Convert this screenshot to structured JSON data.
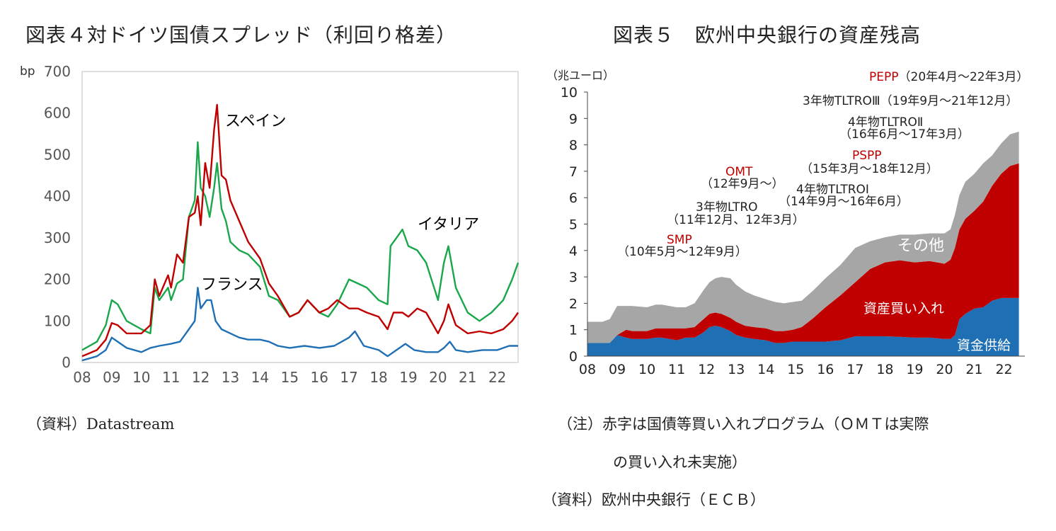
{
  "chart_data": [
    {
      "type": "line",
      "title": "図表４対ドイツ国債スプレッド（利回り格差）",
      "ylabel": "bp",
      "ylim": [
        0,
        700
      ],
      "xlim": [
        2008,
        2022.7
      ],
      "yticks": [
        0,
        100,
        200,
        300,
        400,
        500,
        600,
        700
      ],
      "xticklabels": [
        "08",
        "09",
        "10",
        "11",
        "12",
        "13",
        "14",
        "15",
        "16",
        "17",
        "18",
        "19",
        "20",
        "21",
        "22"
      ],
      "grid": false,
      "series": [
        {
          "name": "スペイン",
          "color": "#c00000",
          "x": [
            2008.0,
            2008.5,
            2008.8,
            2009.0,
            2009.2,
            2009.5,
            2010.0,
            2010.3,
            2010.45,
            2010.6,
            2010.9,
            2011.0,
            2011.2,
            2011.4,
            2011.6,
            2011.8,
            2011.9,
            2012.0,
            2012.15,
            2012.3,
            2012.45,
            2012.55,
            2012.7,
            2012.85,
            2013.0,
            2013.3,
            2013.6,
            2014.0,
            2014.3,
            2014.6,
            2015.0,
            2015.3,
            2015.6,
            2016.0,
            2016.3,
            2016.6,
            2017.0,
            2017.3,
            2017.6,
            2018.0,
            2018.3,
            2018.5,
            2018.8,
            2019.0,
            2019.3,
            2019.6,
            2020.0,
            2020.2,
            2020.35,
            2020.6,
            2021.0,
            2021.4,
            2021.8,
            2022.2,
            2022.5,
            2022.7
          ],
          "values": [
            15,
            30,
            55,
            95,
            90,
            70,
            70,
            90,
            200,
            160,
            210,
            180,
            260,
            240,
            350,
            360,
            400,
            330,
            480,
            420,
            560,
            620,
            450,
            440,
            390,
            340,
            290,
            250,
            190,
            160,
            110,
            120,
            150,
            120,
            130,
            150,
            130,
            130,
            120,
            110,
            80,
            120,
            120,
            110,
            130,
            120,
            70,
            100,
            140,
            90,
            70,
            75,
            70,
            80,
            100,
            120
          ]
        },
        {
          "name": "イタリア",
          "color": "#1aa64a",
          "x": [
            2008.0,
            2008.5,
            2008.8,
            2009.0,
            2009.2,
            2009.5,
            2010.0,
            2010.3,
            2010.45,
            2010.6,
            2010.9,
            2011.0,
            2011.2,
            2011.4,
            2011.6,
            2011.8,
            2011.9,
            2012.0,
            2012.15,
            2012.3,
            2012.45,
            2012.55,
            2012.7,
            2012.85,
            2013.0,
            2013.3,
            2013.6,
            2014.0,
            2014.3,
            2014.6,
            2015.0,
            2015.3,
            2015.6,
            2016.0,
            2016.3,
            2016.6,
            2017.0,
            2017.3,
            2017.6,
            2018.0,
            2018.3,
            2018.4,
            2018.6,
            2018.8,
            2019.0,
            2019.3,
            2019.6,
            2020.0,
            2020.2,
            2020.35,
            2020.6,
            2021.0,
            2021.4,
            2021.8,
            2022.2,
            2022.5,
            2022.7
          ],
          "values": [
            30,
            50,
            90,
            150,
            140,
            100,
            80,
            70,
            180,
            150,
            180,
            150,
            190,
            200,
            350,
            390,
            530,
            420,
            400,
            350,
            420,
            480,
            370,
            340,
            290,
            270,
            260,
            230,
            160,
            150,
            110,
            120,
            150,
            120,
            110,
            140,
            200,
            190,
            180,
            150,
            140,
            280,
            300,
            320,
            280,
            270,
            240,
            150,
            240,
            280,
            180,
            120,
            100,
            120,
            150,
            200,
            240
          ]
        },
        {
          "name": "フランス",
          "color": "#1f6fb4",
          "x": [
            2008.0,
            2008.5,
            2008.8,
            2009.0,
            2009.2,
            2009.5,
            2010.0,
            2010.3,
            2010.6,
            2011.0,
            2011.3,
            2011.6,
            2011.8,
            2011.9,
            2012.0,
            2012.2,
            2012.35,
            2012.5,
            2012.7,
            2013.0,
            2013.3,
            2013.6,
            2014.0,
            2014.3,
            2014.6,
            2015.0,
            2015.5,
            2016.0,
            2016.5,
            2017.0,
            2017.2,
            2017.5,
            2018.0,
            2018.3,
            2018.6,
            2018.9,
            2019.2,
            2019.6,
            2020.0,
            2020.2,
            2020.4,
            2020.6,
            2021.0,
            2021.5,
            2022.0,
            2022.4,
            2022.7
          ],
          "values": [
            5,
            15,
            30,
            60,
            50,
            35,
            25,
            35,
            40,
            45,
            50,
            80,
            100,
            180,
            130,
            150,
            150,
            100,
            80,
            70,
            60,
            55,
            55,
            50,
            40,
            35,
            40,
            35,
            40,
            60,
            75,
            40,
            30,
            15,
            30,
            45,
            30,
            25,
            25,
            35,
            50,
            30,
            25,
            30,
            30,
            40,
            40
          ]
        }
      ]
    },
    {
      "type": "area",
      "stacked": true,
      "title": "図表５　欧州中央銀行の資産残高",
      "ylabel": "（兆ユーロ）",
      "ylim": [
        0,
        10
      ],
      "xlim": [
        2008,
        2022.7
      ],
      "yticks": [
        0,
        1,
        2,
        3,
        4,
        5,
        6,
        7,
        8,
        9,
        10
      ],
      "xticklabels": [
        "08",
        "09",
        "10",
        "11",
        "12",
        "13",
        "14",
        "15",
        "16",
        "17",
        "18",
        "19",
        "20",
        "21",
        "22"
      ],
      "grid": false,
      "x": [
        2008.0,
        2008.5,
        2008.75,
        2009.0,
        2009.3,
        2009.5,
        2010.0,
        2010.3,
        2010.5,
        2011.0,
        2011.3,
        2011.6,
        2011.9,
        2012.1,
        2012.3,
        2012.5,
        2012.8,
        2013.0,
        2013.3,
        2013.6,
        2014.0,
        2014.3,
        2014.6,
        2014.9,
        2015.2,
        2015.6,
        2016.0,
        2016.5,
        2017.0,
        2017.5,
        2018.0,
        2018.5,
        2019.0,
        2019.5,
        2020.0,
        2020.2,
        2020.35,
        2020.5,
        2020.7,
        2021.0,
        2021.3,
        2021.6,
        2021.9,
        2022.2,
        2022.5
      ],
      "series": [
        {
          "name": "資金供給",
          "color": "#1f6fb4",
          "values": [
            0.5,
            0.5,
            0.5,
            0.8,
            0.7,
            0.65,
            0.65,
            0.7,
            0.7,
            0.6,
            0.7,
            0.7,
            0.9,
            1.1,
            1.15,
            1.1,
            0.95,
            0.8,
            0.7,
            0.65,
            0.6,
            0.5,
            0.5,
            0.55,
            0.55,
            0.55,
            0.55,
            0.6,
            0.75,
            0.75,
            0.75,
            0.73,
            0.7,
            0.7,
            0.65,
            0.65,
            0.8,
            1.4,
            1.6,
            1.8,
            1.85,
            2.1,
            2.2,
            2.2,
            2.2
          ]
        },
        {
          "name": "資産買い入れ",
          "color": "#c00000",
          "values": [
            0.0,
            0.0,
            0.0,
            0.0,
            0.3,
            0.3,
            0.3,
            0.35,
            0.35,
            0.45,
            0.35,
            0.4,
            0.5,
            0.5,
            0.5,
            0.5,
            0.5,
            0.5,
            0.45,
            0.45,
            0.45,
            0.45,
            0.45,
            0.45,
            0.55,
            0.9,
            1.3,
            1.7,
            2.05,
            2.55,
            2.8,
            2.9,
            2.85,
            2.9,
            2.85,
            3.0,
            3.3,
            3.4,
            3.6,
            3.7,
            4.0,
            4.35,
            4.7,
            5.0,
            5.1
          ]
        },
        {
          "name": "その他",
          "color": "#a6a6a6",
          "values": [
            0.8,
            0.8,
            0.9,
            1.1,
            0.9,
            0.95,
            0.9,
            0.9,
            0.9,
            0.8,
            0.8,
            0.9,
            1.1,
            1.2,
            1.3,
            1.4,
            1.5,
            1.4,
            1.3,
            1.2,
            1.1,
            1.1,
            1.05,
            1.05,
            1.0,
            1.05,
            1.1,
            1.15,
            1.3,
            1.05,
            0.95,
            0.97,
            1.05,
            1.05,
            1.15,
            1.15,
            1.25,
            1.3,
            1.4,
            1.4,
            1.45,
            1.15,
            1.15,
            1.2,
            1.2
          ]
        }
      ]
    }
  ],
  "left": {
    "title": "図表４対ドイツ国債スプレッド（利回り格差）",
    "unit": "bp",
    "y_ticks": [
      "0",
      "100",
      "200",
      "300",
      "400",
      "500",
      "600",
      "700"
    ],
    "x_ticks": [
      "08",
      "09",
      "10",
      "11",
      "12",
      "13",
      "14",
      "15",
      "16",
      "17",
      "18",
      "19",
      "20",
      "21",
      "22"
    ],
    "labels": {
      "spain": "スペイン",
      "italy": "イタリア",
      "france": "フランス"
    },
    "source": "（資料）Datastream"
  },
  "right": {
    "title": "図表５　欧州中央銀行の資産残高",
    "unit": "（兆ユーロ）",
    "y_ticks": [
      "0",
      "1",
      "2",
      "3",
      "4",
      "5",
      "6",
      "7",
      "8",
      "9",
      "10"
    ],
    "x_ticks": [
      "08",
      "09",
      "10",
      "11",
      "12",
      "13",
      "14",
      "15",
      "16",
      "17",
      "18",
      "19",
      "20",
      "21",
      "22"
    ],
    "annotations": {
      "pepp_name": "PEPP",
      "pepp_period": "（20年4月～22年3月）",
      "tltro3": "3年物TLTROⅢ（19年9月～21年12月）",
      "tltro2_name": "4年物TLTROⅡ",
      "tltro2_period": "（16年6月～17年3月）",
      "pspp_name": "PSPP",
      "pspp_period": "（15年3月～18年12月）",
      "omt_name": "OMT",
      "omt_period": "（12年9月～）",
      "tltro1_name": "4年物TLTROⅠ",
      "tltro1_period": "（14年9月～16年6月）",
      "ltro_name": "3年物LTRO",
      "ltro_period": "（11年12月、12年3月）",
      "smp_name": "SMP",
      "smp_period": "（10年5月～12年9月）"
    },
    "area_labels": {
      "other": "その他",
      "purchase": "資産買い入れ",
      "supply": "資金供給"
    },
    "note_line1": "（注）赤字は国債等買い入れプログラム（ＯＭＴは実際",
    "note_line2": "の買い入れ未実施）",
    "source": "（資料）欧州中央銀行（ＥＣＢ）"
  },
  "colors": {
    "red_annotation": "#c00000",
    "spain": "#c00000",
    "italy": "#1aa64a",
    "france": "#1f6fb4"
  }
}
